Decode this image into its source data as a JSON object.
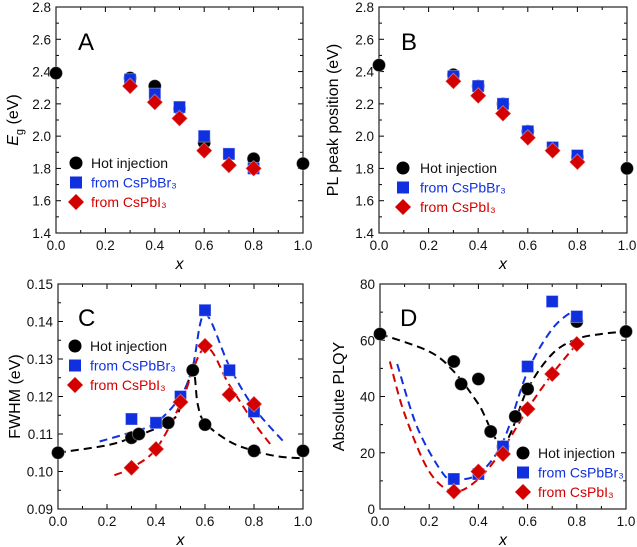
{
  "chart_data": [
    {
      "panel": "A",
      "type": "scatter",
      "ylabel_main": "E",
      "ylabel_sub": "g",
      "ylabel_unit": " (eV)",
      "xlabel": "x",
      "xlim": [
        0,
        1
      ],
      "ylim": [
        1.4,
        2.8
      ],
      "xticks": [
        "0.0",
        "0.2",
        "0.4",
        "0.6",
        "0.8",
        "1.0"
      ],
      "yticks": [
        "1.4",
        "1.6",
        "1.8",
        "2.0",
        "2.2",
        "2.4",
        "2.6",
        "2.8"
      ],
      "legend_position": "center-left",
      "series": [
        {
          "name": "Hot injection",
          "marker": "circle",
          "color": "#000000",
          "x": [
            0,
            0.3,
            0.4,
            0.5,
            0.6,
            0.8,
            1.0
          ],
          "y": [
            2.39,
            2.36,
            2.31,
            2.17,
            1.96,
            1.86,
            1.83
          ]
        },
        {
          "name": "from CsPbBr₃",
          "marker": "square",
          "color": "#1030e0",
          "x": [
            0.3,
            0.4,
            0.5,
            0.6,
            0.7,
            0.8
          ],
          "y": [
            2.35,
            2.26,
            2.18,
            2.0,
            1.89,
            1.8
          ]
        },
        {
          "name": "from CsPbI₃",
          "marker": "diamond",
          "color": "#d40000",
          "x": [
            0.3,
            0.4,
            0.5,
            0.6,
            0.7,
            0.8
          ],
          "y": [
            2.31,
            2.21,
            2.11,
            1.91,
            1.82,
            1.8
          ]
        }
      ]
    },
    {
      "panel": "B",
      "type": "scatter",
      "ylabel_main": "PL peak position (eV)",
      "xlabel": "x",
      "xlim": [
        0,
        1
      ],
      "ylim": [
        1.4,
        2.8
      ],
      "xticks": [
        "0.0",
        "0.2",
        "0.4",
        "0.6",
        "0.8",
        "1.0"
      ],
      "yticks": [
        "1.4",
        "1.6",
        "1.8",
        "2.0",
        "2.2",
        "2.4",
        "2.6",
        "2.8"
      ],
      "legend_position": "center-left",
      "series": [
        {
          "name": "Hot injection",
          "marker": "circle",
          "color": "#000000",
          "x": [
            0,
            0.3,
            0.4,
            0.5,
            0.6,
            0.8,
            1.0
          ],
          "y": [
            2.44,
            2.38,
            2.31,
            2.2,
            2.03,
            1.87,
            1.8
          ]
        },
        {
          "name": "from CsPbBr₃",
          "marker": "square",
          "color": "#1030e0",
          "x": [
            0.3,
            0.4,
            0.5,
            0.6,
            0.7,
            0.8
          ],
          "y": [
            2.37,
            2.31,
            2.2,
            2.03,
            1.93,
            1.88
          ]
        },
        {
          "name": "from CsPbI₃",
          "marker": "diamond",
          "color": "#d40000",
          "x": [
            0.3,
            0.4,
            0.5,
            0.6,
            0.7,
            0.8
          ],
          "y": [
            2.34,
            2.25,
            2.14,
            1.99,
            1.91,
            1.84
          ]
        }
      ]
    },
    {
      "panel": "C",
      "type": "scatter",
      "ylabel_main": "FWHM (eV)",
      "xlabel": "x",
      "xlim": [
        0,
        1
      ],
      "ylim": [
        0.09,
        0.15
      ],
      "xticks": [
        "0.0",
        "0.2",
        "0.4",
        "0.6",
        "0.8",
        "1.0"
      ],
      "yticks": [
        "0.09",
        "0.10",
        "0.11",
        "0.12",
        "0.13",
        "0.14",
        "0.15"
      ],
      "legend_position": "top-left",
      "series": [
        {
          "name": "Hot injection",
          "marker": "circle",
          "color": "#000000",
          "x": [
            0,
            0.3,
            0.33,
            0.45,
            0.55,
            0.6,
            0.8,
            1.0
          ],
          "y": [
            0.105,
            0.109,
            0.11,
            0.113,
            0.127,
            0.1125,
            0.1055,
            0.1055
          ],
          "fit": {
            "x": [
              0,
              0.2,
              0.3,
              0.45,
              0.5,
              0.55,
              0.57,
              0.6,
              0.7,
              0.8,
              0.9,
              1.0
            ],
            "y": [
              0.105,
              0.107,
              0.109,
              0.113,
              0.117,
              0.127,
              0.118,
              0.113,
              0.108,
              0.1055,
              0.104,
              0.1035
            ]
          }
        },
        {
          "name": "from CsPbBr₃",
          "marker": "square",
          "color": "#1030e0",
          "x": [
            0.3,
            0.4,
            0.5,
            0.6,
            0.7,
            0.8
          ],
          "y": [
            0.114,
            0.113,
            0.12,
            0.143,
            0.127,
            0.116
          ],
          "fit": {
            "x": [
              0.17,
              0.3,
              0.4,
              0.5,
              0.55,
              0.6,
              0.7,
              0.8,
              0.92
            ],
            "y": [
              0.108,
              0.1105,
              0.113,
              0.12,
              0.128,
              0.142,
              0.128,
              0.117,
              0.108
            ]
          }
        },
        {
          "name": "from CsPbI₃",
          "marker": "diamond",
          "color": "#d40000",
          "x": [
            0.3,
            0.4,
            0.5,
            0.6,
            0.7,
            0.8
          ],
          "y": [
            0.101,
            0.106,
            0.1185,
            0.1335,
            0.1205,
            0.118
          ],
          "fit": {
            "x": [
              0.23,
              0.3,
              0.4,
              0.5,
              0.6,
              0.7,
              0.8,
              0.87
            ],
            "y": [
              0.099,
              0.101,
              0.106,
              0.118,
              0.133,
              0.123,
              0.113,
              0.107
            ]
          }
        }
      ]
    },
    {
      "panel": "D",
      "type": "scatter",
      "ylabel_main": "Absolute PLQY",
      "xlabel": "x",
      "xlim": [
        0,
        1
      ],
      "ylim": [
        0,
        90
      ],
      "xticks": [
        "0.0",
        "0.2",
        "0.4",
        "0.6",
        "0.8",
        "1.0"
      ],
      "yticks": [
        "0",
        "20",
        "40",
        "60",
        "80"
      ],
      "legend_position": "bottom-right",
      "series": [
        {
          "name": "Hot injection",
          "marker": "circle",
          "color": "#000000",
          "x": [
            0,
            0.3,
            0.33,
            0.4,
            0.45,
            0.5,
            0.55,
            0.6,
            0.8,
            1.0
          ],
          "y": [
            70,
            59,
            50,
            52,
            31,
            25,
            37,
            48,
            75,
            71
          ],
          "fit": {
            "x": [
              0,
              0.2,
              0.3,
              0.4,
              0.5,
              0.6,
              0.7,
              0.8,
              0.9,
              1.0
            ],
            "y": [
              70,
              63,
              55,
              42,
              26,
              48,
              62,
              68,
              70,
              71
            ]
          }
        },
        {
          "name": "from CsPbBr₃",
          "marker": "square",
          "color": "#1030e0",
          "x": [
            0.3,
            0.4,
            0.5,
            0.6,
            0.7,
            0.8
          ],
          "y": [
            12,
            14,
            25,
            57,
            83,
            77
          ],
          "fit": {
            "x": [
              0.07,
              0.15,
              0.25,
              0.3,
              0.4,
              0.5,
              0.6,
              0.7,
              0.78
            ],
            "y": [
              58,
              33,
              15,
              12,
              14,
              27,
              55,
              72,
              79
            ]
          }
        },
        {
          "name": "from CsPbI₃",
          "marker": "diamond",
          "color": "#d40000",
          "x": [
            0.3,
            0.4,
            0.5,
            0.6,
            0.7,
            0.8
          ],
          "y": [
            7,
            15,
            22,
            40,
            54,
            66
          ],
          "fit": {
            "x": [
              0.04,
              0.1,
              0.2,
              0.3,
              0.4,
              0.5,
              0.6,
              0.7,
              0.8
            ],
            "y": [
              59,
              38,
              15,
              7,
              12,
              24,
              40,
              54,
              66
            ]
          }
        }
      ]
    }
  ]
}
